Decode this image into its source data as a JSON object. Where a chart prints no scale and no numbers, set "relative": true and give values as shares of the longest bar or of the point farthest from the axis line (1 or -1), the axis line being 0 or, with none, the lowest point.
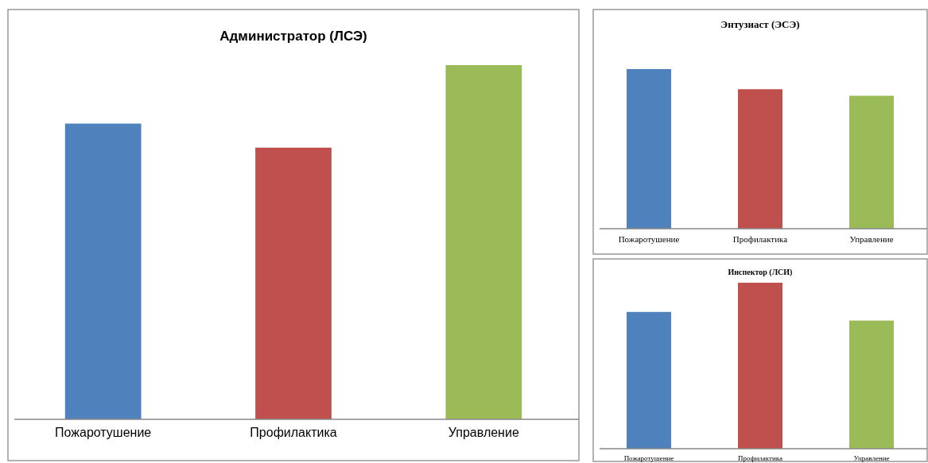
{
  "chart_data": [
    {
      "type": "bar",
      "title": "Администратор (ЛСЭ)",
      "categories": [
        "Пожаротушение",
        "Профилактика",
        "Управление"
      ],
      "values": [
        0.835,
        0.767,
        1
      ],
      "colors": [
        "#4f81bd",
        "#c0504d",
        "#9bbb59"
      ],
      "relative": true
    },
    {
      "type": "bar",
      "title": "Энтузиаст (ЭСЭ)",
      "categories": [
        "Пожаротушение",
        "Профилактика",
        "Управление"
      ],
      "values": [
        1,
        0.874,
        0.833
      ],
      "colors": [
        "#4f81bd",
        "#c0504d",
        "#9bbb59"
      ],
      "relative": true
    },
    {
      "type": "bar",
      "title": "Инспектор (ЛСИ)",
      "categories": [
        "Пожаротушение",
        "Профилактика",
        "Управление"
      ],
      "values": [
        0.824,
        1,
        0.772
      ],
      "colors": [
        "#4f81bd",
        "#c0504d",
        "#9bbb59"
      ],
      "relative": true
    }
  ]
}
